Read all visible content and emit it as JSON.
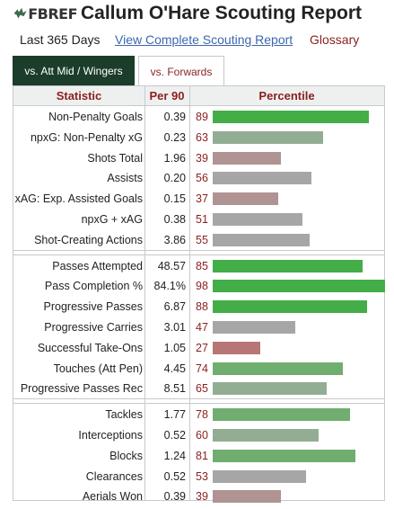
{
  "header": {
    "logo_text": "FBREF",
    "title": "Callum O'Hare Scouting Report"
  },
  "subnav": {
    "period": "Last 365 Days",
    "complete_link": "View Complete Scouting Report",
    "glossary": "Glossary"
  },
  "tabs": [
    {
      "label": "vs. Att Mid / Wingers",
      "active": true
    },
    {
      "label": "vs. Forwards",
      "active": false
    }
  ],
  "table": {
    "headers": {
      "statistic": "Statistic",
      "per90": "Per 90",
      "percentile": "Percentile"
    },
    "groups": [
      [
        {
          "stat": "Non-Penalty Goals",
          "per90": "0.39",
          "pct": 89
        },
        {
          "stat": "npxG: Non-Penalty xG",
          "per90": "0.23",
          "pct": 63
        },
        {
          "stat": "Shots Total",
          "per90": "1.96",
          "pct": 39
        },
        {
          "stat": "Assists",
          "per90": "0.20",
          "pct": 56
        },
        {
          "stat": "xAG: Exp. Assisted Goals",
          "per90": "0.15",
          "pct": 37
        },
        {
          "stat": "npxG + xAG",
          "per90": "0.38",
          "pct": 51
        },
        {
          "stat": "Shot-Creating Actions",
          "per90": "3.86",
          "pct": 55
        }
      ],
      [
        {
          "stat": "Passes Attempted",
          "per90": "48.57",
          "pct": 85
        },
        {
          "stat": "Pass Completion %",
          "per90": "84.1%",
          "pct": 98
        },
        {
          "stat": "Progressive Passes",
          "per90": "6.87",
          "pct": 88
        },
        {
          "stat": "Progressive Carries",
          "per90": "3.01",
          "pct": 47
        },
        {
          "stat": "Successful Take-Ons",
          "per90": "1.05",
          "pct": 27
        },
        {
          "stat": "Touches (Att Pen)",
          "per90": "4.45",
          "pct": 74
        },
        {
          "stat": "Progressive Passes Rec",
          "per90": "8.51",
          "pct": 65
        }
      ],
      [
        {
          "stat": "Tackles",
          "per90": "1.77",
          "pct": 78
        },
        {
          "stat": "Interceptions",
          "per90": "0.52",
          "pct": 60
        },
        {
          "stat": "Blocks",
          "per90": "1.24",
          "pct": 81
        },
        {
          "stat": "Clearances",
          "per90": "0.52",
          "pct": 53
        },
        {
          "stat": "Aerials Won",
          "per90": "0.39",
          "pct": 39
        }
      ]
    ]
  },
  "colors": {
    "tab_active_bg": "#1b3d2a",
    "header_text": "#8a1f1f",
    "bar_high": "#43ad47",
    "bar_mid_high": "#6fae6f",
    "bar_mid": "#93ad93",
    "bar_neutral": "#a6a6a6",
    "bar_low": "#b09393",
    "bar_very_low": "#b77575"
  }
}
